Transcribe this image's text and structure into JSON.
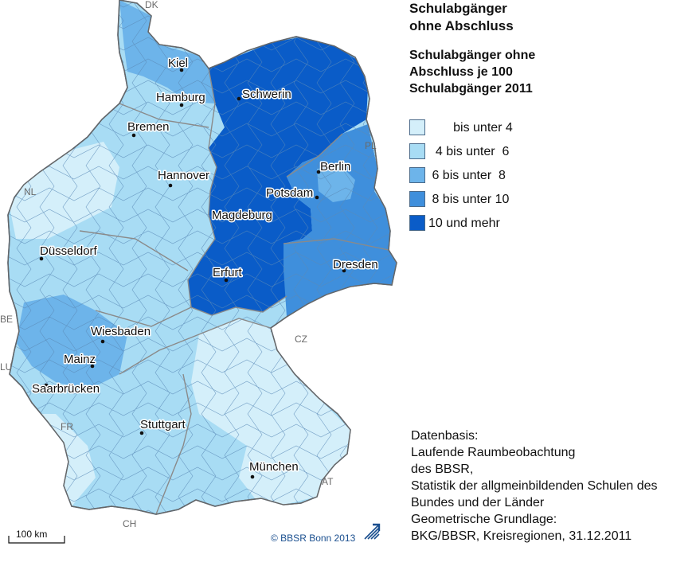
{
  "title_lines": [
    "Schulabgänger",
    "ohne Abschluss"
  ],
  "subtitle_lines": [
    "Schulabgänger ohne",
    "Abschluss je 100",
    "Schulabgänger 2011"
  ],
  "legend": [
    {
      "label": "       bis unter 4",
      "color": "#d4effa"
    },
    {
      "label": "  4 bis unter  6",
      "color": "#a8dcf4"
    },
    {
      "label": " 6 bis unter  8",
      "color": "#6db4ea"
    },
    {
      "label": " 8 bis unter 10",
      "color": "#3f8fdc"
    },
    {
      "label": "10 und mehr",
      "color": "#0a5cc8"
    }
  ],
  "cities": [
    "Kiel",
    "Hamburg",
    "Schwerin",
    "Bremen",
    "Berlin",
    "Hannover",
    "Potsdam",
    "Magdeburg",
    "Düsseldorf",
    "Dresden",
    "Erfurt",
    "Wiesbaden",
    "Mainz",
    "Saarbrücken",
    "Stuttgart",
    "München"
  ],
  "neighbours": [
    "DK",
    "PL",
    "NL",
    "BE",
    "LU",
    "CZ",
    "FR",
    "AT",
    "CH"
  ],
  "scale_label": "100 km",
  "copyright": "© BBSR Bonn 2013",
  "source_lines": [
    "Datenbasis:",
    "Laufende Raumbeobachtung",
    "des BBSR,",
    "Statistik der allgmeinbildenden Schulen des",
    "Bundes und der Länder",
    "Geometrische Grundlage:",
    "BKG/BBSR, Kreisregionen, 31.12.2011"
  ],
  "colors": {
    "outline": "#4a6a8a",
    "water": "#ffffff",
    "text": "#111111"
  }
}
